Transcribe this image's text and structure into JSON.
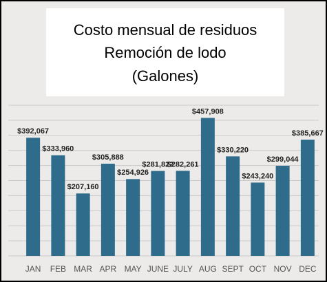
{
  "chart_data": {
    "type": "bar",
    "title": [
      "Costo mensual de residuos",
      "Remoción de lodo",
      "(Galones)"
    ],
    "categories": [
      "JAN",
      "FEB",
      "MAR",
      "APR",
      "MAY",
      "JUNE",
      "JULY",
      "AUG",
      "SEPT",
      "OCT",
      "NOV",
      "DEC"
    ],
    "values": [
      392067,
      333960,
      207160,
      305888,
      254926,
      281822,
      282261,
      457908,
      330220,
      243240,
      299044,
      385667
    ],
    "value_labels": [
      "$392,067",
      "$333,960",
      "$207,160",
      "$305,888",
      "$254,926",
      "$281,822",
      "$282,261",
      "$457,908",
      "$330,220",
      "$243,240",
      "$299,044",
      "$385,667"
    ],
    "color": "#2f6c8c",
    "ylim": [
      0,
      500000
    ],
    "yticks": [
      0,
      50000,
      100000,
      150000,
      200000,
      250000,
      300000,
      350000,
      400000,
      450000,
      500000
    ],
    "grid": true
  }
}
